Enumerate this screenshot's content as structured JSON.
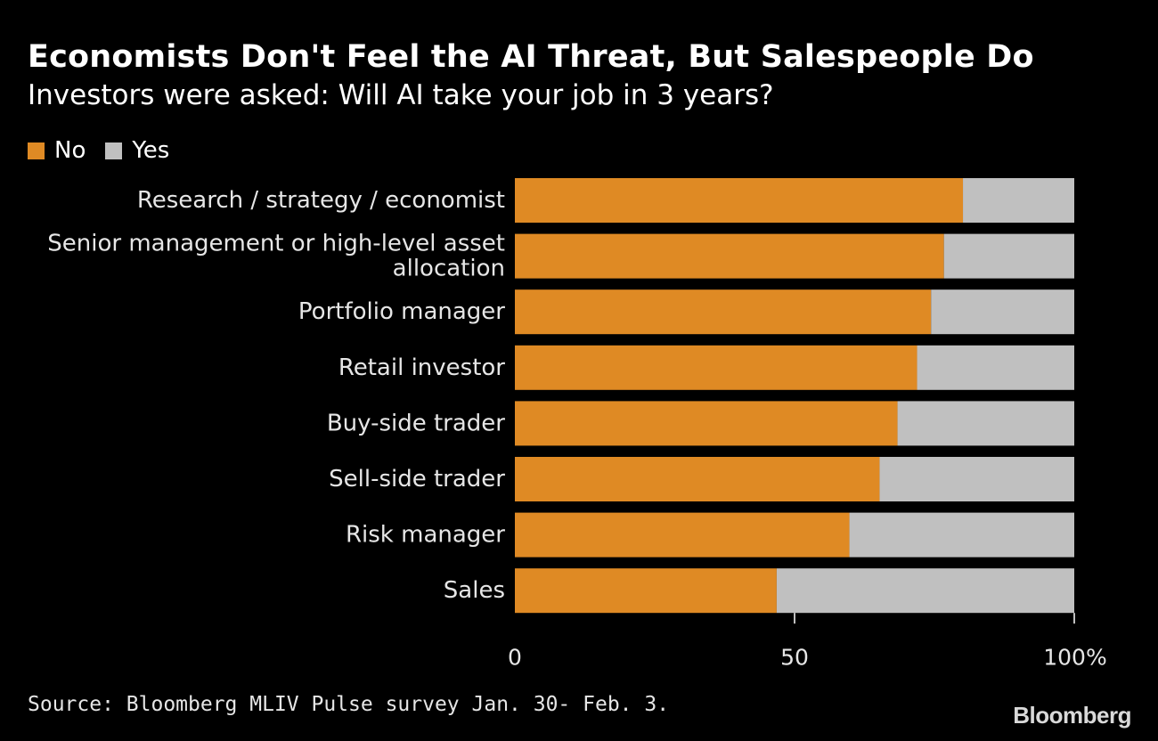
{
  "title": "Economists Don't Feel the AI Threat, But Salespeople Do",
  "subtitle": "Investors were asked: Will AI take your job in 3 years?",
  "source": "Source: Bloomberg MLIV Pulse survey Jan. 30- Feb. 3.",
  "logo": "Bloomberg",
  "colors": {
    "no": "#df8a24",
    "yes": "#c0c0c0",
    "background": "#000000"
  },
  "chart_data": {
    "type": "bar",
    "orientation": "horizontal",
    "stacked": true,
    "title": "Economists Don't Feel the AI Threat, But Salespeople Do",
    "subtitle": "Investors were asked: Will AI take your job in 3 years?",
    "legend_position": "top-left",
    "categories": [
      [
        "Research / strategy / economist"
      ],
      [
        "Senior management or high-level asset",
        "allocation"
      ],
      [
        "Portfolio manager"
      ],
      [
        "Retail investor"
      ],
      [
        "Buy-side trader"
      ],
      [
        "Sell-side trader"
      ],
      [
        "Risk manager"
      ],
      [
        "Sales"
      ]
    ],
    "series": [
      {
        "name": "No",
        "color": "#df8a24",
        "values": [
          80.1,
          76.7,
          74.4,
          71.9,
          68.4,
          65.2,
          59.8,
          46.8
        ]
      },
      {
        "name": "Yes",
        "color": "#c0c0c0",
        "values": [
          19.9,
          23.3,
          25.6,
          28.1,
          31.6,
          34.8,
          40.2,
          53.2
        ]
      }
    ],
    "xlim": [
      0,
      100
    ],
    "xticks": [
      0,
      50,
      100
    ],
    "xtick_labels": [
      "0",
      "50",
      "100%"
    ],
    "xlabel": "",
    "ylabel": "",
    "grid": false
  }
}
